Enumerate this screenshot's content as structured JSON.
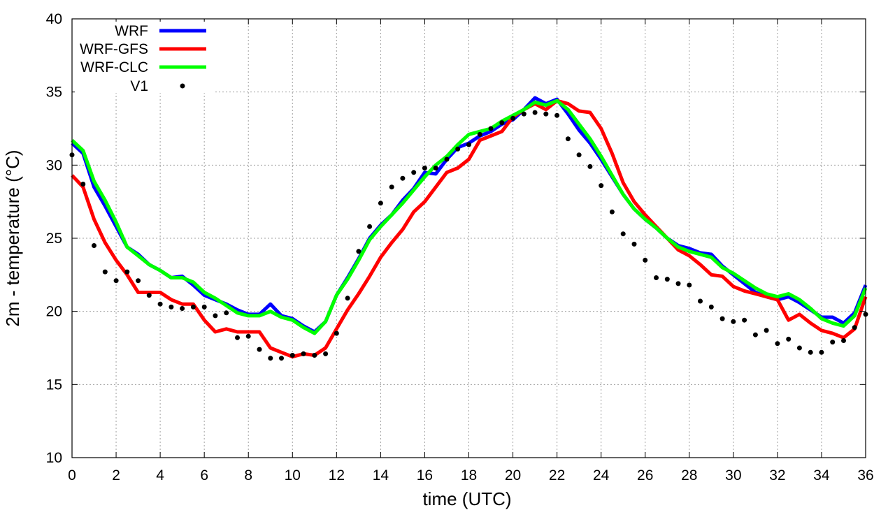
{
  "chart_data": {
    "type": "line",
    "xlabel": "time (UTC)",
    "ylabel": "2m - temperature (°C)",
    "xlim": [
      0,
      36
    ],
    "ylim": [
      10,
      40
    ],
    "x_ticks": [
      0,
      2,
      4,
      6,
      8,
      10,
      12,
      14,
      16,
      18,
      20,
      22,
      24,
      26,
      28,
      30,
      32,
      34,
      36
    ],
    "y_ticks": [
      10,
      15,
      20,
      25,
      30,
      35,
      40
    ],
    "grid": true,
    "legend_position": "top-left",
    "series": [
      {
        "name": "WRF",
        "style": "line",
        "color": "#0000ff",
        "x": [
          0,
          0.5,
          1,
          1.5,
          2,
          2.5,
          3,
          3.5,
          4,
          4.5,
          5,
          5.5,
          6,
          6.5,
          7,
          7.5,
          8,
          8.5,
          9,
          9.5,
          10,
          10.5,
          11,
          11.5,
          12,
          12.5,
          13,
          13.5,
          14,
          14.5,
          15,
          15.5,
          16,
          16.5,
          17,
          17.5,
          18,
          18.5,
          19,
          19.5,
          20,
          20.5,
          21,
          21.5,
          22,
          22.5,
          23,
          23.5,
          24,
          24.5,
          25,
          25.5,
          26,
          26.5,
          27,
          27.5,
          28,
          28.5,
          29,
          29.5,
          30,
          30.5,
          31,
          31.5,
          32,
          32.5,
          33,
          33.5,
          34,
          34.5,
          35,
          35.5,
          36
        ],
        "y": [
          31.5,
          30.8,
          28.5,
          27.2,
          25.8,
          24.4,
          23.9,
          23.2,
          22.8,
          22.3,
          22.4,
          21.8,
          21.1,
          20.8,
          20.5,
          20.1,
          19.8,
          19.8,
          20.5,
          19.7,
          19.5,
          19.0,
          18.6,
          19.3,
          21.1,
          22.3,
          23.6,
          25.0,
          25.9,
          26.6,
          27.6,
          28.4,
          29.5,
          29.4,
          30.4,
          31.2,
          31.5,
          32.0,
          32.3,
          32.8,
          33.1,
          33.8,
          34.6,
          34.2,
          34.5,
          33.5,
          32.4,
          31.5,
          30.4,
          29.2,
          28.0,
          27.0,
          26.3,
          25.7,
          25.0,
          24.5,
          24.3,
          24.0,
          23.9,
          23.1,
          22.5,
          21.9,
          21.3,
          21.0,
          20.8,
          21.0,
          20.6,
          20.1,
          19.6,
          19.6,
          19.2,
          19.9,
          21.8
        ]
      },
      {
        "name": "WRF-GFS",
        "style": "line",
        "color": "#ff0000",
        "x": [
          0,
          0.5,
          1,
          1.5,
          2,
          2.5,
          3,
          3.5,
          4,
          4.5,
          5,
          5.5,
          6,
          6.5,
          7,
          7.5,
          8,
          8.5,
          9,
          9.5,
          10,
          10.5,
          11,
          11.5,
          12,
          12.5,
          13,
          13.5,
          14,
          14.5,
          15,
          15.5,
          16,
          16.5,
          17,
          17.5,
          18,
          18.5,
          19,
          19.5,
          20,
          20.5,
          21,
          21.5,
          22,
          22.5,
          23,
          23.5,
          24,
          24.5,
          25,
          25.5,
          26,
          26.5,
          27,
          27.5,
          28,
          28.5,
          29,
          29.5,
          30,
          30.5,
          31,
          31.5,
          32,
          32.5,
          33,
          33.5,
          34,
          34.5,
          35,
          35.5,
          36
        ],
        "y": [
          29.3,
          28.5,
          26.3,
          24.7,
          23.5,
          22.5,
          21.3,
          21.3,
          21.3,
          20.8,
          20.5,
          20.5,
          19.4,
          18.6,
          18.8,
          18.6,
          18.6,
          18.6,
          17.5,
          17.2,
          16.9,
          17.1,
          17.0,
          17.5,
          18.8,
          20.1,
          21.2,
          22.4,
          23.7,
          24.7,
          25.6,
          26.8,
          27.5,
          28.5,
          29.5,
          29.8,
          30.4,
          31.7,
          32.0,
          32.3,
          33.3,
          33.8,
          34.2,
          33.8,
          34.4,
          34.2,
          33.7,
          33.6,
          32.5,
          30.8,
          28.8,
          27.5,
          26.6,
          25.8,
          25.0,
          24.2,
          23.8,
          23.2,
          22.5,
          22.4,
          21.7,
          21.4,
          21.2,
          21.0,
          20.8,
          19.4,
          19.8,
          19.2,
          18.7,
          18.5,
          18.2,
          18.8,
          21.0
        ]
      },
      {
        "name": "WRF-CLC",
        "style": "line",
        "color": "#00ff00",
        "x": [
          0,
          0.5,
          1,
          1.5,
          2,
          2.5,
          3,
          3.5,
          4,
          4.5,
          5,
          5.5,
          6,
          6.5,
          7,
          7.5,
          8,
          8.5,
          9,
          9.5,
          10,
          10.5,
          11,
          11.5,
          12,
          12.5,
          13,
          13.5,
          14,
          14.5,
          15,
          15.5,
          16,
          16.5,
          17,
          17.5,
          18,
          18.5,
          19,
          19.5,
          20,
          20.5,
          21,
          21.5,
          22,
          22.5,
          23,
          23.5,
          24,
          24.5,
          25,
          25.5,
          26,
          26.5,
          27,
          27.5,
          28,
          28.5,
          29,
          29.5,
          30,
          30.5,
          31,
          31.5,
          32,
          32.5,
          33,
          33.5,
          34,
          34.5,
          35,
          35.5,
          36
        ],
        "y": [
          31.7,
          31.0,
          28.9,
          27.6,
          26.1,
          24.4,
          23.8,
          23.2,
          22.8,
          22.3,
          22.3,
          22.0,
          21.3,
          20.9,
          20.4,
          19.9,
          19.7,
          19.7,
          20.0,
          19.6,
          19.4,
          18.9,
          18.5,
          19.3,
          21.1,
          22.2,
          23.5,
          24.9,
          25.8,
          26.6,
          27.4,
          28.3,
          29.2,
          30.0,
          30.6,
          31.4,
          32.1,
          32.3,
          32.5,
          33.0,
          33.4,
          33.8,
          34.3,
          34.1,
          34.4,
          33.8,
          32.8,
          31.8,
          30.6,
          29.3,
          28.0,
          27.0,
          26.3,
          25.7,
          25.0,
          24.4,
          24.1,
          23.9,
          23.7,
          23.0,
          22.6,
          22.1,
          21.6,
          21.2,
          21.0,
          21.2,
          20.8,
          20.2,
          19.5,
          19.2,
          19.0,
          19.7,
          21.6
        ]
      },
      {
        "name": "V1",
        "style": "points",
        "color": "#000000",
        "x": [
          0,
          0.5,
          1,
          1.5,
          2,
          2.5,
          3,
          3.5,
          4,
          4.5,
          5,
          5.5,
          6,
          6.5,
          7,
          7.5,
          8,
          8.5,
          9,
          9.5,
          10,
          10.5,
          11,
          11.5,
          12,
          12.5,
          13,
          13.5,
          14,
          14.5,
          15,
          15.5,
          16,
          16.5,
          17,
          17.5,
          18,
          18.5,
          19,
          19.5,
          20,
          20.5,
          21,
          21.5,
          22,
          22.5,
          23,
          23.5,
          24,
          24.5,
          25,
          25.5,
          26,
          26.5,
          27,
          27.5,
          28,
          28.5,
          29,
          29.5,
          30,
          30.5,
          31,
          31.5,
          32,
          32.5,
          33,
          33.5,
          34,
          34.5,
          35,
          35.5,
          36
        ],
        "y": [
          30.7,
          28.7,
          24.5,
          22.7,
          22.1,
          22.7,
          22.1,
          21.1,
          20.5,
          20.3,
          20.2,
          20.3,
          20.3,
          19.7,
          19.9,
          18.2,
          18.3,
          17.4,
          16.8,
          16.8,
          17.0,
          17.1,
          17.0,
          17.1,
          18.5,
          20.9,
          24.1,
          25.8,
          27.4,
          28.5,
          29.1,
          29.5,
          29.8,
          29.8,
          30.4,
          31.1,
          31.4,
          32.1,
          32.5,
          32.9,
          33.2,
          33.5,
          33.6,
          33.5,
          33.4,
          31.8,
          30.7,
          29.9,
          28.6,
          26.8,
          25.3,
          24.6,
          23.5,
          22.3,
          22.2,
          21.9,
          21.8,
          20.7,
          20.3,
          19.5,
          19.3,
          19.4,
          18.4,
          18.7,
          17.8,
          18.1,
          17.5,
          17.2,
          17.2,
          17.9,
          18.0,
          18.9,
          19.8
        ]
      }
    ]
  }
}
